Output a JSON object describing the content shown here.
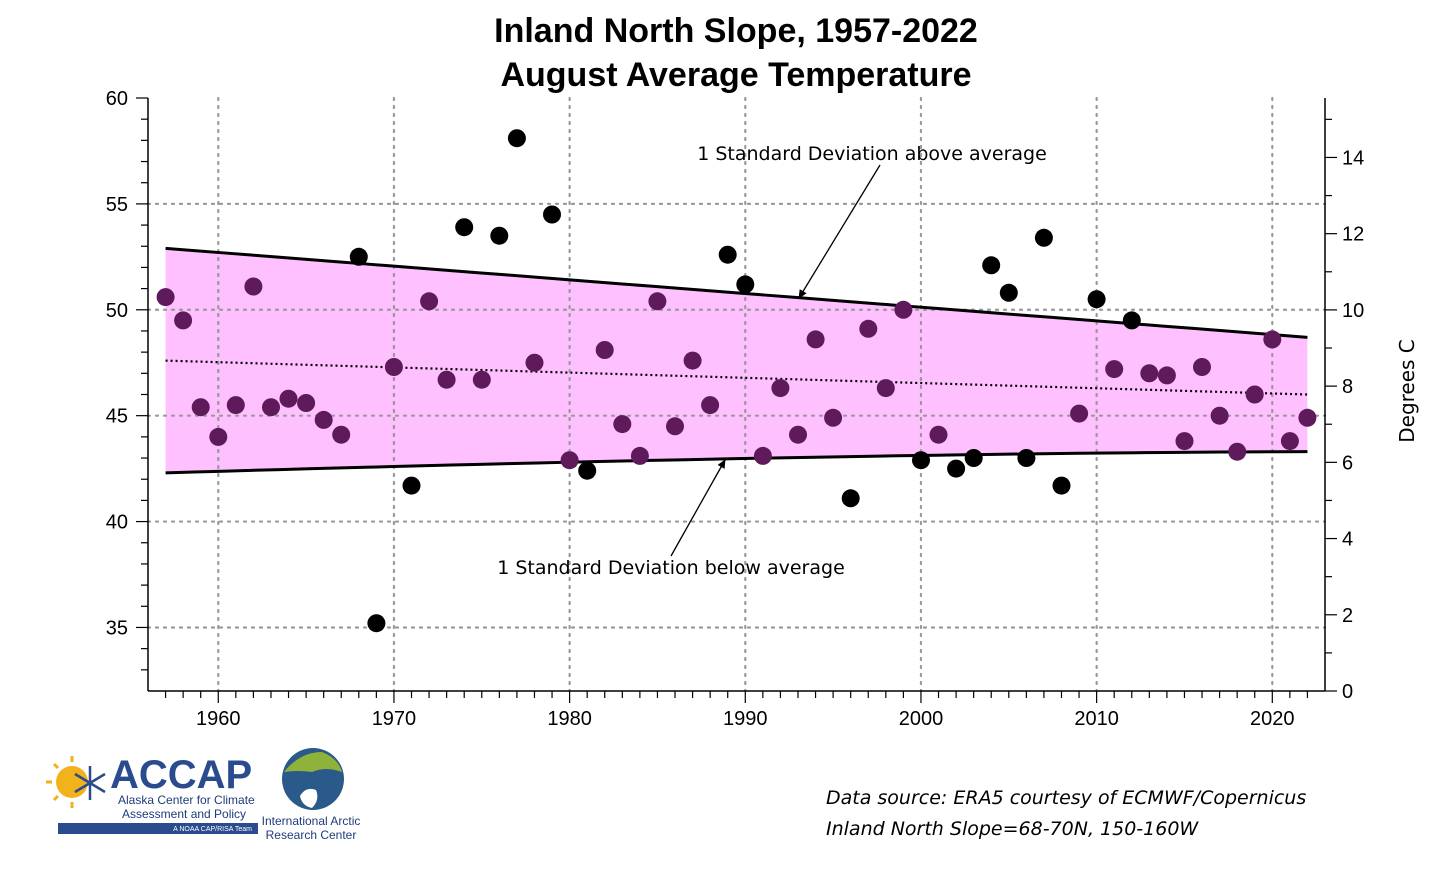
{
  "chart_data": {
    "type": "scatter",
    "title": "Inland North Slope, 1957-2022",
    "subtitle": "August Average Temperature",
    "ylabel_right": "Degrees C",
    "xlim": [
      1956,
      2023
    ],
    "ylim_left": [
      32,
      60
    ],
    "ylim_right": [
      0,
      15.56
    ],
    "x_ticks": [
      1960,
      1970,
      1980,
      1990,
      2000,
      2010,
      2020
    ],
    "y_left_ticks": [
      35,
      40,
      45,
      50,
      55,
      60
    ],
    "y_right_ticks": [
      0,
      2,
      4,
      6,
      8,
      10,
      12,
      14
    ],
    "grid": true,
    "band": {
      "upper": {
        "x": [
          1957,
          2022
        ],
        "y": [
          52.9,
          48.7
        ]
      },
      "lower": {
        "x": [
          1957,
          1990,
          2022
        ],
        "y": [
          42.3,
          43.0,
          43.3
        ]
      },
      "color": "#ffc0ff"
    },
    "trend": {
      "x": [
        1957,
        2022
      ],
      "y": [
        47.6,
        46.0
      ]
    },
    "points": {
      "x": [
        1957,
        1958,
        1959,
        1960,
        1961,
        1962,
        1963,
        1964,
        1965,
        1966,
        1967,
        1968,
        1969,
        1970,
        1971,
        1972,
        1973,
        1974,
        1975,
        1976,
        1977,
        1978,
        1979,
        1980,
        1981,
        1982,
        1983,
        1984,
        1985,
        1986,
        1987,
        1988,
        1989,
        1990,
        1991,
        1992,
        1993,
        1994,
        1995,
        1996,
        1997,
        1998,
        1999,
        2000,
        2001,
        2002,
        2003,
        2004,
        2005,
        2006,
        2007,
        2008,
        2009,
        2010,
        2011,
        2012,
        2013,
        2014,
        2015,
        2016,
        2017,
        2018,
        2019,
        2020,
        2021,
        2022
      ],
      "y": [
        50.6,
        49.5,
        45.4,
        44.0,
        45.5,
        51.1,
        45.4,
        45.8,
        45.6,
        44.8,
        44.1,
        52.5,
        35.2,
        47.3,
        41.7,
        50.4,
        46.7,
        53.9,
        46.7,
        53.5,
        58.1,
        47.5,
        54.5,
        42.9,
        42.4,
        48.1,
        44.6,
        43.1,
        50.4,
        44.5,
        47.6,
        45.5,
        52.6,
        51.2,
        43.1,
        46.3,
        44.1,
        48.6,
        44.9,
        41.1,
        49.1,
        46.3,
        50.0,
        42.9,
        44.1,
        42.5,
        43.0,
        52.1,
        50.8,
        43.0,
        53.4,
        41.7,
        45.1,
        50.5,
        47.2,
        49.5,
        47.0,
        46.9,
        43.8,
        47.3,
        45.0,
        43.3,
        46.0,
        48.6,
        43.8,
        44.9
      ]
    },
    "annotations": {
      "above": "1 Standard Deviation above average",
      "below": "1 Standard Deviation below average"
    }
  },
  "footer": {
    "source_line1": "Data source: ERA5 courtesy of ECMWF/Copernicus",
    "source_line2": "Inland North Slope=68-70N, 150-160W"
  },
  "logos": {
    "accap_name": "ACCAP",
    "accap_line1": "Alaska Center for Climate",
    "accap_line2": "Assessment and Policy",
    "accap_tag": "A NOAA CAP/RISA Team",
    "iarc_line1": "International Arctic",
    "iarc_line2": "Research Center"
  }
}
